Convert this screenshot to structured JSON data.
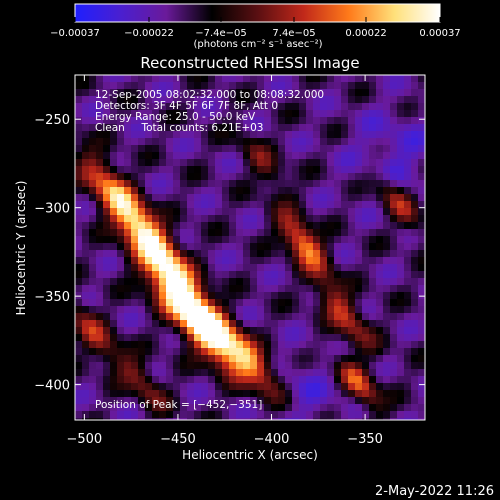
{
  "chart_data": {
    "type": "heatmap",
    "title": "Reconstructed RHESSI Image",
    "xlabel": "Heliocentric X (arcsec)",
    "ylabel": "Heliocentric Y (arcsec)",
    "xlim": [
      -505,
      -318
    ],
    "ylim": [
      -420,
      -225
    ],
    "xticks": [
      -500,
      -450,
      -400,
      -350
    ],
    "xtick_labels": [
      "−500",
      "−450",
      "−400",
      "−350"
    ],
    "yticks": [
      -250,
      -300,
      -350,
      -400
    ],
    "ytick_labels": [
      "−250",
      "−300",
      "−350",
      "−400"
    ],
    "colorbar": {
      "min": -0.00037,
      "max": 0.00037,
      "ticks": [
        -0.00037,
        -0.00022,
        -7.4e-05,
        7.4e-05,
        0.00022,
        0.00037
      ],
      "tick_labels": [
        "−0.00037",
        "−0.00022",
        "−7.4e−05",
        "7.4e−05",
        "0.00022",
        "0.00037"
      ],
      "unit_label": "(photons cm⁻² s⁻¹ asec⁻²)",
      "colormap": [
        "#1f1fff",
        "#4a1fd0",
        "#6a1a9a",
        "#000000",
        "#5a0f12",
        "#c0281a",
        "#ff7a1a",
        "#ffe07a",
        "#ffffff"
      ]
    },
    "annotations": [
      "12-Sep-2005 08:02:32.000 to 08:08:32.000",
      "Detectors: 3F 4F 5F 6F 7F 8F, Att 0",
      "Energy Range: 25.0 - 50.0 keV",
      "Clean     Total counts: 6.21E+03"
    ],
    "peak_label": "Position of Peak = [−452,−351]",
    "peak_position": [
      -452,
      -351
    ]
  },
  "footer": {
    "timestamp": "2-May-2022 11:26"
  }
}
